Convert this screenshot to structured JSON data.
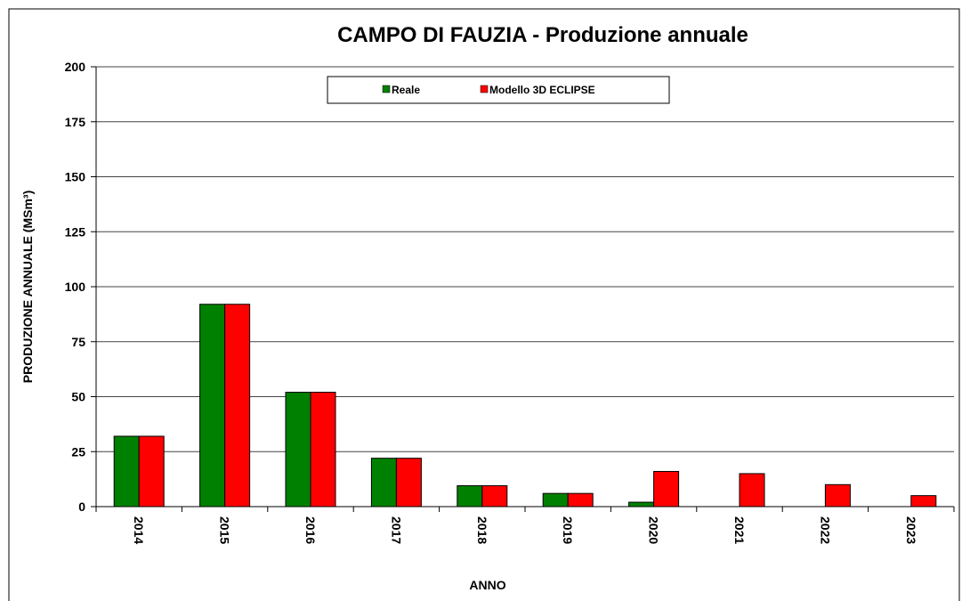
{
  "chart_data": {
    "type": "bar",
    "title": "CAMPO DI FAUZIA - Produzione annuale",
    "x_label": "ANNO",
    "y_label": "PRODUZIONE ANNUALE (MSm³)",
    "categories": [
      "2014",
      "2015",
      "2016",
      "2017",
      "2018",
      "2019",
      "2020",
      "2021",
      "2022",
      "2023"
    ],
    "series": [
      {
        "name": "Reale",
        "color": "#008000",
        "values": [
          32,
          92,
          52,
          22,
          9.5,
          6,
          2,
          null,
          null,
          null
        ]
      },
      {
        "name": "Modello 3D ECLIPSE",
        "color": "#ff0000",
        "values": [
          32,
          92,
          52,
          22,
          9.5,
          6,
          16,
          15,
          10,
          5
        ]
      }
    ],
    "ylim": [
      0,
      200
    ],
    "yticks": [
      0,
      25,
      50,
      75,
      100,
      125,
      150,
      175,
      200
    ],
    "grid": true,
    "legend": "top"
  }
}
